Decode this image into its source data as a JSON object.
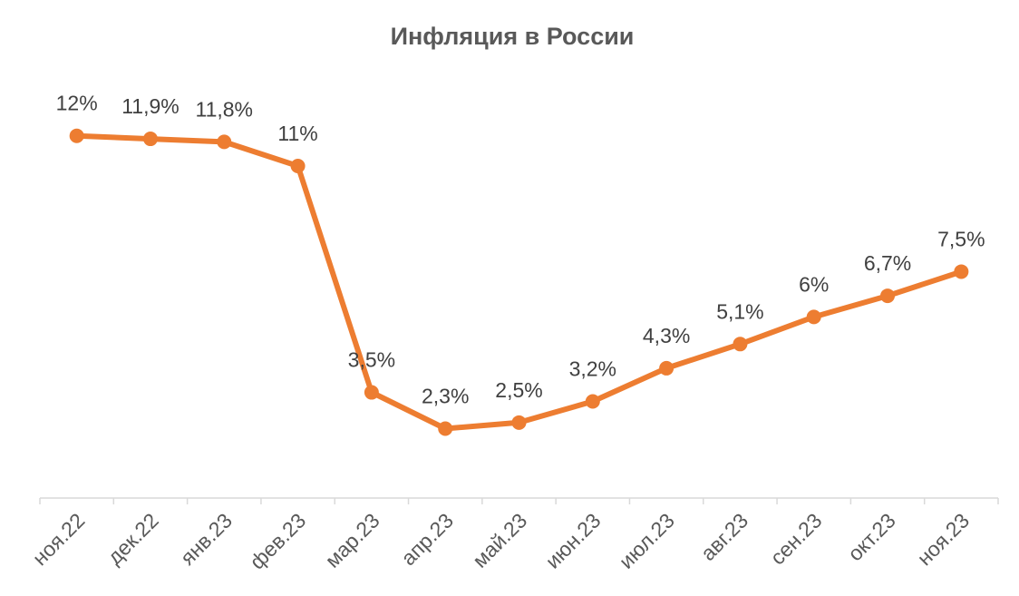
{
  "chart_data": {
    "type": "line",
    "title": "Инфляция в России",
    "xlabel": "",
    "ylabel": "",
    "categories": [
      "ноя.22",
      "дек.22",
      "янв.23",
      "фев.23",
      "мар.23",
      "апр.23",
      "май.23",
      "июн.23",
      "июл.23",
      "авг.23",
      "сен.23",
      "окт.23",
      "ноя.23"
    ],
    "series": [
      {
        "values": [
          12,
          11.9,
          11.8,
          11,
          3.5,
          2.3,
          2.5,
          3.2,
          4.3,
          5.1,
          6,
          6.7,
          7.5
        ],
        "labels": [
          "12%",
          "11,9%",
          "11,8%",
          "11%",
          "3,5%",
          "2,3%",
          "2,5%",
          "3,2%",
          "4,3%",
          "5,1%",
          "6%",
          "6,7%",
          "7,5%"
        ],
        "color": "#ED7D31"
      }
    ],
    "ylim": [
      0,
      16.5
    ],
    "grid": false,
    "legend": "none",
    "axis_color": "#D9D9D9"
  }
}
